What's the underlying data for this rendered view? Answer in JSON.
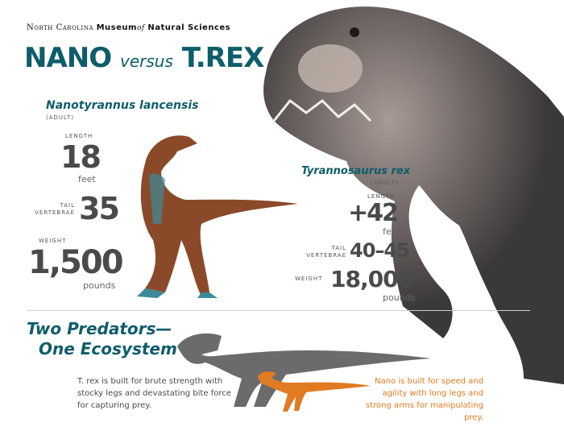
{
  "header": {
    "museum_prefix": "North Carolina",
    "museum_name": "Museum",
    "museum_of": "of",
    "museum_suffix": "Natural Sciences",
    "title_left": "NANO",
    "title_versus": "versus",
    "title_right": "T.REX"
  },
  "nano": {
    "name": "Nanotyrannus lancensis",
    "age": "(ADULT)",
    "length_label": "LENGTH",
    "length_value": "18",
    "length_unit": "feet",
    "tail_label_1": "TAIL",
    "tail_label_2": "VERTEBRAE",
    "tail_value": "35",
    "weight_label": "WEIGHT",
    "weight_value": "1,500",
    "weight_unit": "pounds"
  },
  "trex": {
    "name": "Tyrannosaurus rex",
    "age": "(ADULT)",
    "length_label": "LENGTH",
    "length_value": "+42",
    "length_unit": "feet",
    "tail_label_1": "TAIL",
    "tail_label_2": "VERTEBRAE",
    "tail_value": "40–45",
    "weight_label": "WEIGHT",
    "weight_value": "18,000",
    "weight_unit": "pounds"
  },
  "ecosystem": {
    "heading_1": "Two Predators—",
    "heading_2": "One Ecosystem",
    "trex_desc": "T. rex is built for brute strength with stocky legs and devastating bite force for capturing prey.",
    "nano_desc": "Nano is built for speed and agility with long legs and strong arms for manipulating prey."
  },
  "colors": {
    "teal": "#0f5d6b",
    "orange": "#e07b21",
    "gray": "#6b6b6b"
  }
}
